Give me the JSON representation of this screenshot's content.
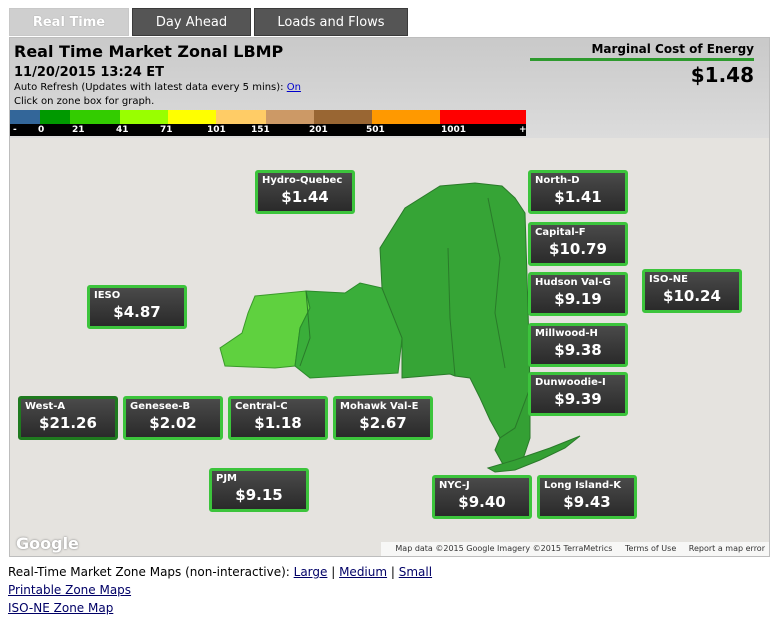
{
  "tabs": [
    {
      "label": "Real Time",
      "active": true
    },
    {
      "label": "Day Ahead",
      "active": false
    },
    {
      "label": "Loads and Flows",
      "active": false
    }
  ],
  "header": {
    "title": "Real Time Market Zonal LBMP",
    "datetime": "11/20/2015 13:24 ET",
    "refresh_text": "Auto Refresh (Updates with latest data every 5 mins): ",
    "refresh_link": "On",
    "click_hint": "Click on zone box for graph."
  },
  "legend": {
    "colors": [
      "#336699",
      "#009900",
      "#33cc00",
      "#99ff00",
      "#ffff00",
      "#ffcc66",
      "#cc9966",
      "#996633",
      "#ff9900",
      "#ff0000"
    ],
    "labels": [
      "-",
      "0",
      "21",
      "41",
      "71",
      "101",
      "151",
      "201",
      "501",
      "1001",
      "+"
    ]
  },
  "mce": {
    "label": "Marginal Cost of Energy",
    "value": "$1.48"
  },
  "zones": {
    "hydro_quebec": {
      "name": "Hydro-Quebec",
      "price": "$1.44"
    },
    "ieso": {
      "name": "IESO",
      "price": "$4.87"
    },
    "west_a": {
      "name": "West-A",
      "price": "$21.26"
    },
    "genesee_b": {
      "name": "Genesee-B",
      "price": "$2.02"
    },
    "central_c": {
      "name": "Central-C",
      "price": "$1.18"
    },
    "mohawk_e": {
      "name": "Mohawk Val-E",
      "price": "$2.67"
    },
    "pjm": {
      "name": "PJM",
      "price": "$9.15"
    },
    "north_d": {
      "name": "North-D",
      "price": "$1.41"
    },
    "capital_f": {
      "name": "Capital-F",
      "price": "$10.79"
    },
    "hudson_g": {
      "name": "Hudson Val-G",
      "price": "$9.19"
    },
    "iso_ne": {
      "name": "ISO-NE",
      "price": "$10.24"
    },
    "millwood_h": {
      "name": "Millwood-H",
      "price": "$9.38"
    },
    "dunwoodie_i": {
      "name": "Dunwoodie-I",
      "price": "$9.39"
    },
    "nyc_j": {
      "name": "NYC-J",
      "price": "$9.40"
    },
    "long_island_k": {
      "name": "Long Island-K",
      "price": "$9.43"
    }
  },
  "map": {
    "logo": "Google",
    "attribution": "Map data ©2015 Google Imagery ©2015 TerraMetrics",
    "terms": "Terms of Use",
    "report": "Report a map error"
  },
  "links": {
    "zone_maps_label": "Real-Time Market Zone Maps (non-interactive): ",
    "large": "Large",
    "medium": "Medium",
    "small": "Small",
    "sep": " | ",
    "printable": "Printable Zone Maps",
    "iso_ne": "ISO-NE Zone Map"
  }
}
